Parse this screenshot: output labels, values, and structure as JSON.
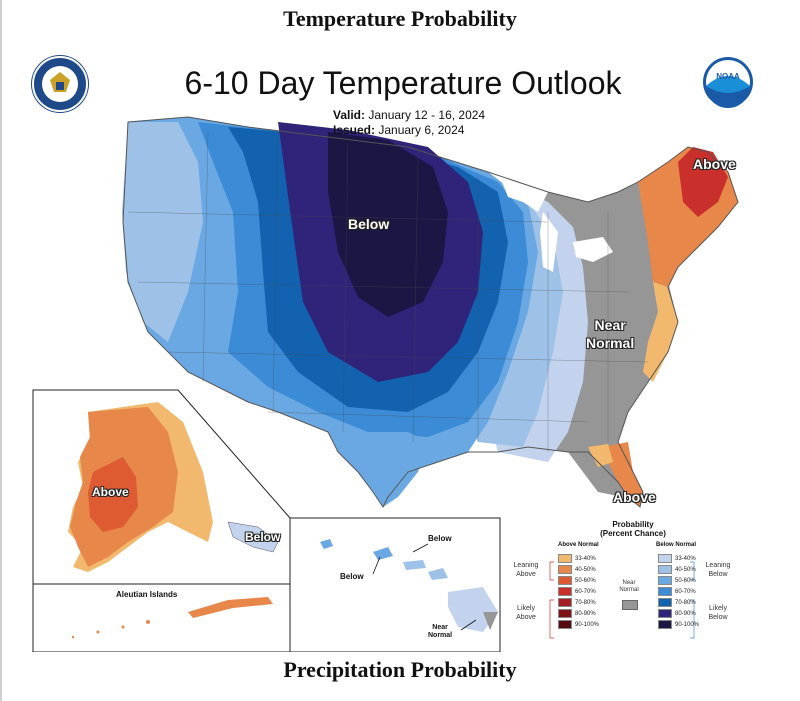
{
  "titles": {
    "top": "Temperature Probability",
    "bottom": "Precipitation Probability"
  },
  "map": {
    "title": "6-10 Day Temperature Outlook",
    "valid_label": "Valid:",
    "valid_value": "January 12 - 16, 2024",
    "issued_label": "Issued:",
    "issued_value": "January 6, 2024",
    "regions": {
      "below_central": "Below",
      "above_northeast": "Above",
      "near_normal_line1": "Near",
      "near_normal_line2": "Normal",
      "above_florida": "Above",
      "above_alaska": "Above",
      "below_panhandle": "Below"
    },
    "inset_labels": {
      "aleutian": "Aleutian Islands",
      "hawaii_below_1": "Below",
      "hawaii_below_2": "Below",
      "hawaii_near_normal_1": "Near",
      "hawaii_near_normal_2": "Normal"
    },
    "logos": {
      "left": "commerce-seal-icon",
      "right": "noaa-logo-icon",
      "noaa_text": "NOAA"
    }
  },
  "legend": {
    "title_line1": "Probability",
    "title_line2": "(Percent Chance)",
    "above_header": "Above Normal",
    "below_header": "Below Normal",
    "near_normal_1": "Near",
    "near_normal_2": "Normal",
    "leaning_above_1": "Leaning",
    "leaning_above_2": "Above",
    "likely_above_1": "Likely",
    "likely_above_2": "Above",
    "leaning_below_1": "Leaning",
    "leaning_below_2": "Below",
    "likely_below_1": "Likely",
    "likely_below_2": "Below",
    "above_bins": [
      {
        "label": "33-40%",
        "color": "#f2b86d"
      },
      {
        "label": "40-50%",
        "color": "#e8874a"
      },
      {
        "label": "50-60%",
        "color": "#dd5a32"
      },
      {
        "label": "60-70%",
        "color": "#c9302c"
      },
      {
        "label": "70-80%",
        "color": "#a51e22"
      },
      {
        "label": "80-90%",
        "color": "#7f1418"
      },
      {
        "label": "90-100%",
        "color": "#550b10"
      }
    ],
    "below_bins": [
      {
        "label": "33-40%",
        "color": "#c3d3ee"
      },
      {
        "label": "40-50%",
        "color": "#9ec1e8"
      },
      {
        "label": "50-60%",
        "color": "#6aa8e3"
      },
      {
        "label": "60-70%",
        "color": "#3b8bd6"
      },
      {
        "label": "70-80%",
        "color": "#1262b0"
      },
      {
        "label": "80-90%",
        "color": "#2f2479"
      },
      {
        "label": "90-100%",
        "color": "#1c1645"
      }
    ],
    "near_color": "#969696"
  }
}
